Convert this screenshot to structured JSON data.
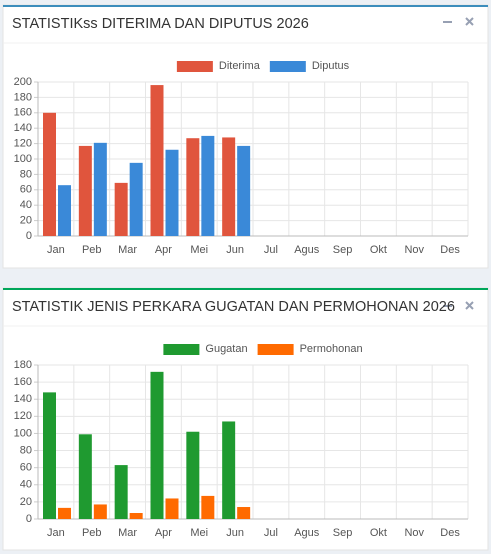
{
  "chart_data": [
    {
      "type": "bar",
      "title": "STATISTIKss DITERIMA DAN DIPUTUS 2026",
      "categories": [
        "Jan",
        "Peb",
        "Mar",
        "Apr",
        "Mei",
        "Jun",
        "Jul",
        "Agus",
        "Sep",
        "Okt",
        "Nov",
        "Des"
      ],
      "series": [
        {
          "name": "Diterima",
          "color": "#e0553d",
          "values": [
            160,
            117,
            69,
            196,
            127,
            128,
            null,
            null,
            null,
            null,
            null,
            null
          ]
        },
        {
          "name": "Diputus",
          "color": "#3a89d8",
          "values": [
            66,
            121,
            95,
            112,
            130,
            117,
            null,
            null,
            null,
            null,
            null,
            null
          ]
        }
      ],
      "ylim": [
        0,
        200
      ],
      "yticks": [
        0,
        20,
        40,
        60,
        80,
        100,
        120,
        140,
        160,
        180,
        200
      ],
      "grid": true,
      "accent": "#3c8dbc"
    },
    {
      "type": "bar",
      "title": "STATISTIK JENIS PERKARA GUGATAN DAN PERMOHONAN 2026",
      "categories": [
        "Jan",
        "Peb",
        "Mar",
        "Apr",
        "Mei",
        "Jun",
        "Jul",
        "Agus",
        "Sep",
        "Okt",
        "Nov",
        "Des"
      ],
      "series": [
        {
          "name": "Gugatan",
          "color": "#1f9a30",
          "values": [
            148,
            99,
            63,
            172,
            102,
            114,
            null,
            null,
            null,
            null,
            null,
            null
          ]
        },
        {
          "name": "Permohonan",
          "color": "#ff6a00",
          "values": [
            13,
            17,
            7,
            24,
            27,
            14,
            null,
            null,
            null,
            null,
            null,
            null
          ]
        }
      ],
      "ylim": [
        0,
        180
      ],
      "yticks": [
        0,
        20,
        40,
        60,
        80,
        100,
        120,
        140,
        160,
        180
      ],
      "grid": true,
      "accent": "#00a65a"
    }
  ]
}
